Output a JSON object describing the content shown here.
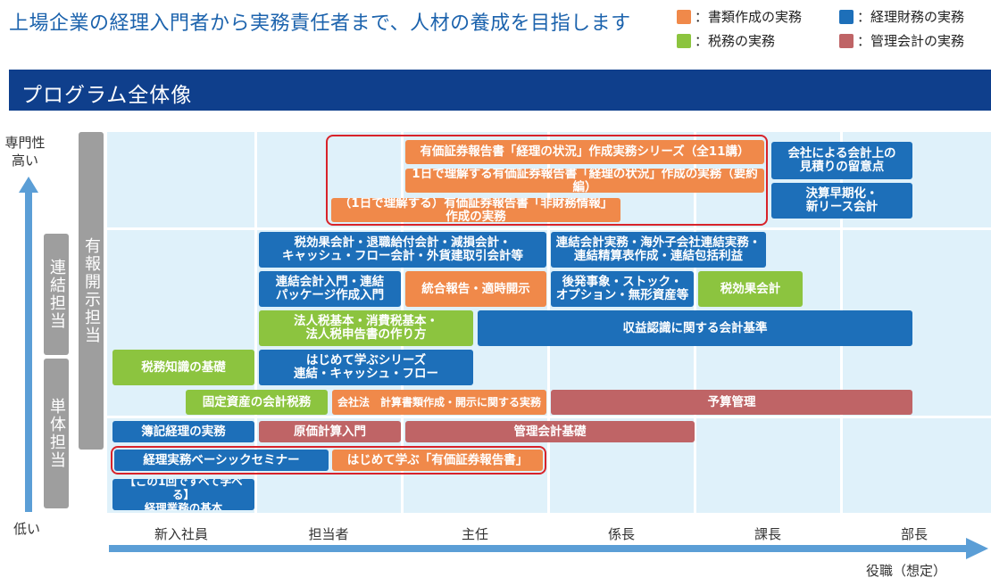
{
  "headline": "上場企業の経理入門者から実務責任者まで、人材の養成を目指します",
  "legend": [
    {
      "label": "：書類作成の実務",
      "color": "#f0894a"
    },
    {
      "label": "：経理財務の実務",
      "color": "#1d6fb9"
    },
    {
      "label": "：税務の実務",
      "color": "#8cc43f"
    },
    {
      "label": "：管理会計の実務",
      "color": "#bf6466"
    }
  ],
  "banner_title": "プログラム全体像",
  "y_axis": {
    "top_label": "専門性\n高い",
    "bottom_label": "低い"
  },
  "x_axis": {
    "categories": [
      "新入社員",
      "担当者",
      "主任",
      "係長",
      "課長",
      "部長"
    ],
    "axis_label": "役職（想定）"
  },
  "side_labels": {
    "consolidated": "連結担当",
    "standalone": "単体担当",
    "disclosure": "有報開示担当"
  },
  "programs": {
    "yuho_series": "有価証券報告書「経理の状況」作成実務シリーズ（全11講）",
    "yuho_summary": "1日で理解する有価証券報告書「経理の状況」作成の実務（要約編）",
    "nonfinancial": "（1日で理解する）有価証券報告書「非財務情報」作成の実務",
    "estimates": "会社による会計上の\n見積りの留意点",
    "early_close": "決算早期化・\n新リース会計",
    "tax_effect_etc": "税効果会計・退職給付会計・減損会計・\nキャッシュ・フロー会計・外貨建取引会計等",
    "consolidation_practice": "連結会計実務・海外子会社連結実務・\n連結精算表作成・連結包括利益",
    "consolidation_intro": "連結会計入門・連結\nパッケージ作成入門",
    "integrated_report": "統合報告・適時開示",
    "subsequent_events": "後発事象・ストック・\nオプション・無形資産等",
    "tax_effect": "税効果会計",
    "corporate_tax": "法人税基本・消費税基本・\n法人税申告書の作り方",
    "revenue_recognition": "収益認識に関する会計基準",
    "tax_basics": "税務知識の基礎",
    "first_series": "はじめて学ぶシリーズ\n連結・キャッシュ・フロー",
    "fixed_asset_tax": "固定資産の会計税務",
    "companies_act": "会社法　計算書類作成・開示に関する実務",
    "budget": "予算管理",
    "bookkeeping": "簿記経理の実務",
    "costing_intro": "原価計算入門",
    "management_accounting": "管理会計基礎",
    "basic_seminar": "経理実務ベーシックセミナー",
    "first_yuho": "はじめて学ぶ「有価証券報告書」",
    "one_session": "【この1回ですべて学べる】\n経理業務の基本"
  }
}
